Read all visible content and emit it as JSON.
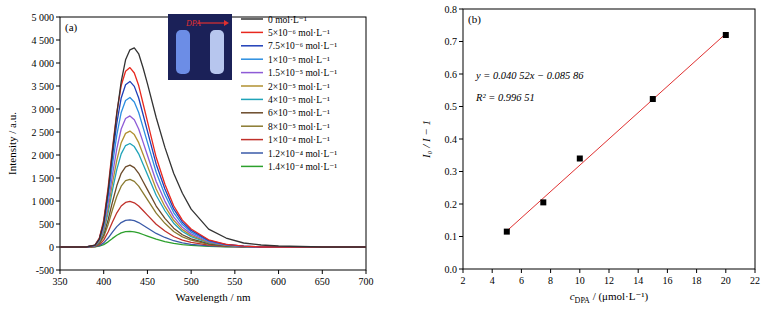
{
  "chart_data": [
    {
      "type": "line",
      "title": "(a)",
      "inset_label": "DPA",
      "x_label": "Wavelength / nm",
      "y_label": "Intensity / a.u.",
      "xlim": [
        350,
        700
      ],
      "ylim": [
        -500,
        5000
      ],
      "xticks": [
        350,
        400,
        450,
        500,
        550,
        600,
        650,
        700
      ],
      "yticks": [
        -500,
        0,
        500,
        {
          "value": 1000,
          "label": "1 000"
        },
        {
          "value": 1500,
          "label": "1 500"
        },
        {
          "value": 2000,
          "label": "2 000"
        },
        {
          "value": 2500,
          "label": "2 500"
        },
        {
          "value": 3000,
          "label": "3 000"
        },
        {
          "value": 3500,
          "label": "3 500"
        },
        {
          "value": 4000,
          "label": "4 000"
        },
        {
          "value": 4500,
          "label": "4 500"
        },
        {
          "value": 5000,
          "label": "5 000"
        }
      ],
      "grid": false,
      "legend": "upper right",
      "x": [
        350,
        370,
        380,
        390,
        395,
        400,
        405,
        410,
        415,
        420,
        425,
        430,
        435,
        440,
        445,
        450,
        460,
        470,
        480,
        490,
        500,
        520,
        540,
        560,
        580,
        600,
        650,
        700
      ],
      "series": [
        {
          "name": "0 mol·L⁻¹",
          "color": "#333333",
          "values": [
            0,
            0,
            0,
            43,
            173,
            520,
            1212,
            2078,
            2901,
            3594,
            4070,
            4287,
            4330,
            4200,
            3897,
            3551,
            2815,
            2165,
            1602,
            1169,
            823,
            390,
            195,
            87,
            43,
            22,
            0,
            0
          ]
        },
        {
          "name": "5×10⁻⁶ mol·L⁻¹",
          "color": "#e8281e",
          "values": [
            0,
            0,
            0,
            39,
            195,
            585,
            1287,
            2145,
            2925,
            3510,
            3822,
            3900,
            3783,
            3510,
            3120,
            2730,
            1950,
            1365,
            897,
            585,
            390,
            156,
            59,
            20,
            0,
            0,
            0,
            0
          ]
        },
        {
          "name": "7.5×10⁻⁶ mol·L⁻¹",
          "color": "#1f3fb8",
          "values": [
            0,
            0,
            0,
            36,
            180,
            540,
            1188,
            1980,
            2700,
            3240,
            3528,
            3600,
            3492,
            3240,
            2880,
            2520,
            1800,
            1260,
            828,
            540,
            360,
            144,
            54,
            18,
            0,
            0,
            0,
            0
          ]
        },
        {
          "name": "1×10⁻⁵ mol·L⁻¹",
          "color": "#2b8ee0",
          "values": [
            0,
            0,
            0,
            33,
            163,
            488,
            1073,
            1788,
            2438,
            2925,
            3185,
            3250,
            3153,
            2925,
            2600,
            2275,
            1625,
            1138,
            748,
            488,
            325,
            130,
            49,
            16,
            0,
            0,
            0,
            0
          ]
        },
        {
          "name": "1.5×10⁻⁵ mol·L⁻¹",
          "color": "#8e5bd6",
          "values": [
            0,
            0,
            0,
            29,
            143,
            428,
            941,
            1568,
            2138,
            2565,
            2793,
            2850,
            2765,
            2565,
            2280,
            1995,
            1425,
            998,
            656,
            428,
            285,
            114,
            43,
            14,
            0,
            0,
            0,
            0
          ]
        },
        {
          "name": "2×10⁻⁵ mol·L⁻¹",
          "color": "#b09030",
          "values": [
            0,
            0,
            0,
            25,
            126,
            378,
            832,
            1386,
            1890,
            2268,
            2470,
            2520,
            2444,
            2268,
            2016,
            1764,
            1260,
            882,
            580,
            378,
            252,
            101,
            38,
            13,
            0,
            0,
            0,
            0
          ]
        },
        {
          "name": "4×10⁻⁵ mol·L⁻¹",
          "color": "#1fa3b8",
          "values": [
            0,
            0,
            0,
            23,
            113,
            338,
            743,
            1238,
            1688,
            2025,
            2205,
            2250,
            2183,
            2025,
            1800,
            1575,
            1125,
            788,
            518,
            338,
            225,
            90,
            34,
            11,
            0,
            0,
            0,
            0
          ]
        },
        {
          "name": "6×10⁻⁵ mol·L⁻¹",
          "color": "#6b4a2a",
          "values": [
            0,
            0,
            0,
            18,
            89,
            267,
            587,
            979,
            1335,
            1602,
            1744,
            1780,
            1727,
            1602,
            1424,
            1246,
            890,
            623,
            409,
            267,
            178,
            71,
            27,
            9,
            0,
            0,
            0,
            0
          ]
        },
        {
          "name": "8×10⁻⁵ mol·L⁻¹",
          "color": "#8a7a30",
          "values": [
            0,
            0,
            0,
            15,
            74,
            221,
            485,
            809,
            1103,
            1323,
            1441,
            1470,
            1426,
            1323,
            1176,
            1029,
            735,
            515,
            338,
            221,
            147,
            59,
            22,
            7,
            0,
            0,
            0,
            0
          ]
        },
        {
          "name": "1×10⁻⁴ mol·L⁻¹",
          "color": "#c0302a",
          "values": [
            0,
            0,
            0,
            10,
            50,
            149,
            327,
            545,
            743,
            891,
            970,
            990,
            960,
            891,
            792,
            693,
            495,
            347,
            228,
            149,
            99,
            40,
            15,
            5,
            0,
            0,
            0,
            0
          ]
        },
        {
          "name": "1.2×10⁻⁴ mol·L⁻¹",
          "color": "#3a5aa8",
          "values": [
            0,
            0,
            0,
            6,
            30,
            89,
            195,
            325,
            443,
            531,
            578,
            590,
            572,
            531,
            472,
            413,
            295,
            207,
            136,
            89,
            59,
            24,
            9,
            3,
            0,
            0,
            0,
            0
          ]
        },
        {
          "name": "1.4×10⁻⁴ mol·L⁻¹",
          "color": "#2ca02c",
          "values": [
            0,
            0,
            0,
            3,
            17,
            51,
            112,
            187,
            255,
            306,
            333,
            340,
            330,
            306,
            272,
            238,
            170,
            119,
            78,
            51,
            34,
            14,
            5,
            2,
            0,
            0,
            0,
            0
          ]
        }
      ]
    },
    {
      "type": "scatter",
      "title": "(b)",
      "x_label": "cDPA / (μmol·L⁻¹)",
      "y_label": "I₀ / I − 1",
      "annotations": [
        "y = 0.040 52x − 0.085 86",
        "R² = 0.996 51"
      ],
      "xlim": [
        2,
        22
      ],
      "ylim": [
        0,
        0.8
      ],
      "xticks": [
        2,
        4,
        6,
        8,
        10,
        12,
        14,
        16,
        18,
        20,
        22
      ],
      "yticks": [
        {
          "value": 0,
          "label": "0.0"
        },
        0.1,
        0.2,
        0.3,
        0.4,
        0.5,
        0.6,
        0.7,
        0.8
      ],
      "grid": false,
      "series": [
        {
          "type": "scatter",
          "marker": "square",
          "color": "#000000",
          "x": [
            5,
            7.5,
            10,
            15,
            20
          ],
          "values": [
            0.115,
            0.205,
            0.34,
            0.523,
            0.72
          ]
        },
        {
          "type": "line",
          "color": "#e03030",
          "x": [
            5,
            20
          ],
          "values": [
            0.117,
            0.724
          ]
        }
      ]
    }
  ]
}
